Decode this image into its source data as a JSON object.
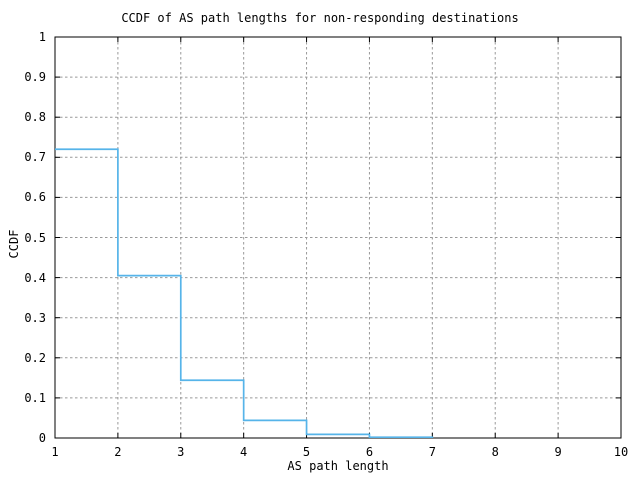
{
  "chart_data": {
    "type": "line",
    "subtype": "step-ccdf",
    "title": "CCDF of AS path lengths for non-responding destinations",
    "xlabel": "AS path length",
    "ylabel": "CCDF",
    "xlim": [
      1,
      10
    ],
    "ylim": [
      0,
      1
    ],
    "x_ticks": [
      1,
      2,
      3,
      4,
      5,
      6,
      7,
      8,
      9,
      10
    ],
    "x_tick_labels": [
      "1",
      "2",
      "3",
      "4",
      "5",
      "6",
      "7",
      "8",
      "9",
      "10"
    ],
    "y_ticks": [
      0,
      0.1,
      0.2,
      0.3,
      0.4,
      0.5,
      0.6,
      0.7,
      0.8,
      0.9,
      1
    ],
    "y_tick_labels": [
      "0",
      "0.1",
      "0.2",
      "0.3",
      "0.4",
      "0.5",
      "0.6",
      "0.7",
      "0.8",
      "0.9",
      "1"
    ],
    "grid": true,
    "legend": "none",
    "series": [
      {
        "name": "ccdf",
        "color": "#56b4e9",
        "x": [
          1,
          2,
          3,
          4,
          5,
          6,
          7
        ],
        "y": [
          0.72,
          0.405,
          0.144,
          0.044,
          0.009,
          0.002,
          0
        ]
      }
    ]
  },
  "colors": {
    "background": "#ffffff",
    "axis": "#000000",
    "grid": "#999999",
    "line": "#56b4e9"
  }
}
